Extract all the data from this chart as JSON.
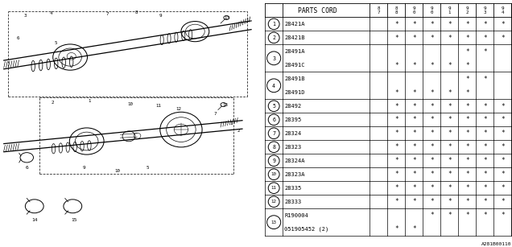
{
  "diagram_note": "A281B00110",
  "col_headers": [
    "87",
    "88",
    "90",
    "90",
    "91",
    "92",
    "93",
    "94"
  ],
  "rows": [
    {
      "num": "1",
      "parts": [
        "28421A"
      ],
      "marks": [
        [
          0,
          1,
          1,
          1,
          1,
          1,
          1,
          1
        ]
      ]
    },
    {
      "num": "2",
      "parts": [
        "28421B"
      ],
      "marks": [
        [
          0,
          1,
          1,
          1,
          1,
          1,
          1,
          1
        ]
      ]
    },
    {
      "num": "3",
      "parts": [
        "28491A",
        "28491C"
      ],
      "marks": [
        [
          0,
          0,
          0,
          0,
          0,
          1,
          1,
          0
        ],
        [
          0,
          1,
          1,
          1,
          1,
          1,
          0,
          0
        ]
      ]
    },
    {
      "num": "4",
      "parts": [
        "28491B",
        "28491D"
      ],
      "marks": [
        [
          0,
          0,
          0,
          0,
          0,
          1,
          1,
          0
        ],
        [
          0,
          1,
          1,
          1,
          1,
          1,
          0,
          0
        ]
      ]
    },
    {
      "num": "5",
      "parts": [
        "28492"
      ],
      "marks": [
        [
          0,
          1,
          1,
          1,
          1,
          1,
          1,
          1
        ]
      ]
    },
    {
      "num": "6",
      "parts": [
        "28395"
      ],
      "marks": [
        [
          0,
          1,
          1,
          1,
          1,
          1,
          1,
          1
        ]
      ]
    },
    {
      "num": "7",
      "parts": [
        "28324"
      ],
      "marks": [
        [
          0,
          1,
          1,
          1,
          1,
          1,
          1,
          1
        ]
      ]
    },
    {
      "num": "8",
      "parts": [
        "28323"
      ],
      "marks": [
        [
          0,
          1,
          1,
          1,
          1,
          1,
          1,
          1
        ]
      ]
    },
    {
      "num": "9",
      "parts": [
        "28324A"
      ],
      "marks": [
        [
          0,
          1,
          1,
          1,
          1,
          1,
          1,
          1
        ]
      ]
    },
    {
      "num": "10",
      "parts": [
        "28323A"
      ],
      "marks": [
        [
          0,
          1,
          1,
          1,
          1,
          1,
          1,
          1
        ]
      ]
    },
    {
      "num": "11",
      "parts": [
        "28335"
      ],
      "marks": [
        [
          0,
          1,
          1,
          1,
          1,
          1,
          1,
          1
        ]
      ]
    },
    {
      "num": "12",
      "parts": [
        "28333"
      ],
      "marks": [
        [
          0,
          1,
          1,
          1,
          1,
          1,
          1,
          1
        ]
      ]
    },
    {
      "num": "13",
      "parts": [
        "R190004",
        "051905452 (2)"
      ],
      "marks": [
        [
          0,
          0,
          0,
          1,
          1,
          1,
          1,
          1
        ],
        [
          0,
          1,
          1,
          0,
          0,
          0,
          0,
          0
        ]
      ]
    }
  ],
  "bg_color": "#ffffff",
  "line_color": "#000000",
  "text_color": "#000000"
}
